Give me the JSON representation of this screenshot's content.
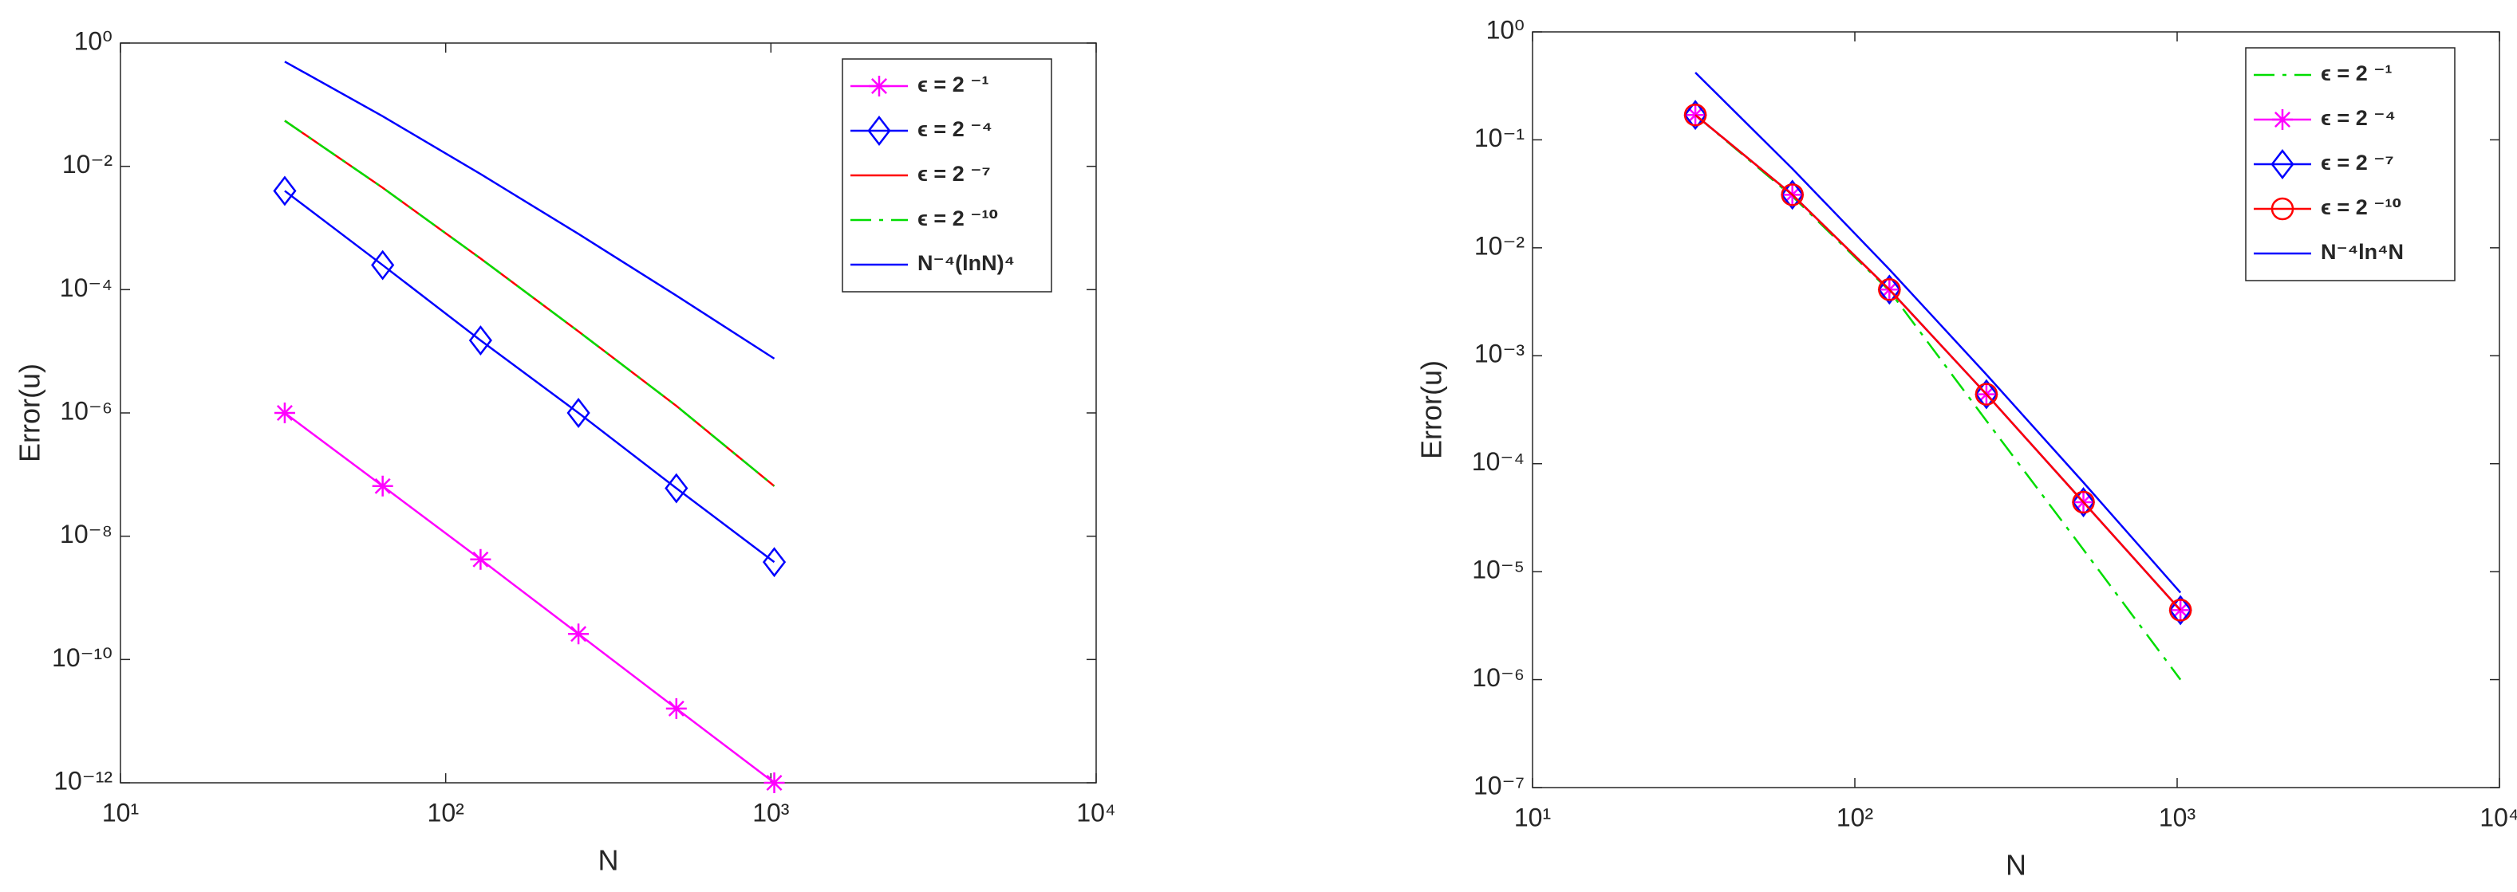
{
  "chart_data": [
    {
      "type": "line",
      "xlabel": "N",
      "ylabel": "Error(u)",
      "xscale": "log",
      "yscale": "log",
      "grid": false,
      "legend": "northeast",
      "x": [
        32,
        64,
        128,
        256,
        512,
        1024
      ],
      "xlim": [
        10,
        10000
      ],
      "xticks": [
        {
          "value": 10,
          "label": "10¹"
        },
        {
          "value": 100,
          "label": "10²"
        },
        {
          "value": 1000,
          "label": "10³"
        },
        {
          "value": 10000,
          "label": "10⁴"
        }
      ],
      "ylim": [
        1e-12,
        1
      ],
      "yticks": [
        {
          "value": 1,
          "label": "10⁰"
        },
        {
          "value": 0.01,
          "label": "10⁻²"
        },
        {
          "value": 0.0001,
          "label": "10⁻⁴"
        },
        {
          "value": 1e-06,
          "label": "10⁻⁶"
        },
        {
          "value": 1e-08,
          "label": "10⁻⁸"
        },
        {
          "value": 1e-10,
          "label": "10⁻¹⁰"
        },
        {
          "value": 1e-12,
          "label": "10⁻¹²"
        }
      ],
      "series": [
        {
          "name": "ϵ = 2 ⁻¹",
          "color": "#ff00ff",
          "marker": "*",
          "linestyle": "-",
          "values": [
            1e-06,
            6.5e-08,
            4.2e-09,
            2.6e-10,
            1.6e-11,
            1e-12
          ]
        },
        {
          "name": "ϵ = 2 ⁻⁴",
          "color": "#0000ff",
          "marker": "diamond",
          "linestyle": "-",
          "values": [
            0.004,
            0.00025,
            1.5e-05,
            1e-06,
            6e-08,
            3.8e-09
          ]
        },
        {
          "name": "ϵ = 2 ⁻⁷",
          "color": "#ff0000",
          "marker": null,
          "linestyle": "-",
          "values": [
            0.055,
            0.0045,
            0.00032,
            2.1e-05,
            1.3e-06,
            6.5e-08
          ]
        },
        {
          "name": "ϵ = 2 ⁻¹⁰",
          "color": "#00dd00",
          "marker": null,
          "linestyle": "-.",
          "values": [
            0.055,
            0.0045,
            0.00032,
            2.1e-05,
            1.3e-06,
            6.5e-08
          ]
        },
        {
          "name": "N⁻⁴(lnN)⁴",
          "color": "#0000ff",
          "marker": null,
          "linestyle": "-",
          "values": [
            0.5,
            0.065,
            0.0075,
            0.0008,
            8e-05,
            7.6e-06
          ]
        }
      ]
    },
    {
      "type": "line",
      "xlabel": "N",
      "ylabel": "Error(u)",
      "xscale": "log",
      "yscale": "log",
      "grid": false,
      "legend": "northeast",
      "x": [
        32,
        64,
        128,
        256,
        512,
        1024
      ],
      "xlim": [
        10,
        10000
      ],
      "xticks": [
        {
          "value": 10,
          "label": "10¹"
        },
        {
          "value": 100,
          "label": "10²"
        },
        {
          "value": 1000,
          "label": "10³"
        },
        {
          "value": 10000,
          "label": "10⁴"
        }
      ],
      "ylim": [
        1e-07,
        1
      ],
      "yticks": [
        {
          "value": 1,
          "label": "10⁰"
        },
        {
          "value": 0.1,
          "label": "10⁻¹"
        },
        {
          "value": 0.01,
          "label": "10⁻²"
        },
        {
          "value": 0.001,
          "label": "10⁻³"
        },
        {
          "value": 0.0001,
          "label": "10⁻⁴"
        },
        {
          "value": 1e-05,
          "label": "10⁻⁵"
        },
        {
          "value": 1e-06,
          "label": "10⁻⁶"
        },
        {
          "value": 1e-07,
          "label": "10⁻⁷"
        }
      ],
      "series": [
        {
          "name": "ϵ = 2 ⁻¹",
          "color": "#00dd00",
          "marker": null,
          "linestyle": "-.",
          "values": [
            0.17,
            0.03,
            0.004,
            0.00025,
            1.6e-05,
            1e-06
          ]
        },
        {
          "name": "ϵ = 2 ⁻⁴",
          "color": "#ff00ff",
          "marker": "*",
          "linestyle": "-",
          "values": [
            0.17,
            0.031,
            0.0041,
            0.00044,
            4.4e-05,
            4.4e-06
          ]
        },
        {
          "name": "ϵ = 2 ⁻⁷",
          "color": "#0000ff",
          "marker": "diamond",
          "linestyle": "-",
          "values": [
            0.17,
            0.031,
            0.0041,
            0.00044,
            4.4e-05,
            4.4e-06
          ]
        },
        {
          "name": "ϵ = 2 ⁻¹⁰",
          "color": "#ff0000",
          "marker": "o",
          "linestyle": "-",
          "values": [
            0.17,
            0.031,
            0.0041,
            0.00044,
            4.4e-05,
            4.4e-06
          ]
        },
        {
          "name": "N⁻⁴ln⁴N",
          "color": "#0000ff",
          "marker": null,
          "linestyle": "-",
          "values": [
            0.42,
            0.054,
            0.0063,
            0.00067,
            6.7e-05,
            6.4e-06
          ]
        }
      ]
    }
  ]
}
